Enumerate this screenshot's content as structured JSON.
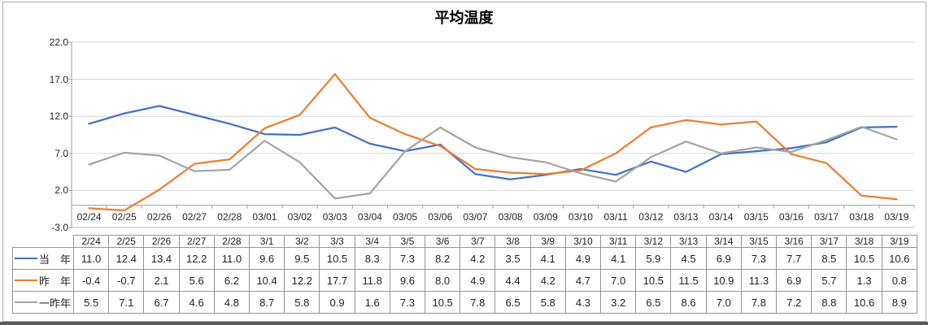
{
  "chart_data": {
    "type": "line",
    "title": "平均温度",
    "x_axis_labels": [
      "02/24",
      "02/25",
      "02/26",
      "02/27",
      "02/28",
      "03/01",
      "03/02",
      "03/03",
      "03/04",
      "03/05",
      "03/06",
      "03/07",
      "03/08",
      "03/09",
      "03/10",
      "03/11",
      "03/12",
      "03/13",
      "03/14",
      "03/15",
      "03/16",
      "03/17",
      "03/18",
      "03/19"
    ],
    "y_axis": {
      "min": -3.0,
      "max": 22.0,
      "step": 5.0,
      "tick_labels": [
        "22.0",
        "17.0",
        "12.0",
        "7.0",
        "2.0",
        "-3.0"
      ],
      "tick_values": [
        22,
        17,
        12,
        7,
        2,
        -3
      ],
      "axis_crosses_at": 0
    },
    "grid": true,
    "legend_position": "data-table-left",
    "series": [
      {
        "name": "当　年",
        "color": "#4472C4",
        "values": [
          11.0,
          12.4,
          13.4,
          12.2,
          11.0,
          9.6,
          9.5,
          10.5,
          8.3,
          7.3,
          8.2,
          4.2,
          3.5,
          4.1,
          4.9,
          4.1,
          5.9,
          4.5,
          6.9,
          7.3,
          7.7,
          8.5,
          10.5,
          10.6
        ]
      },
      {
        "name": "昨　年",
        "color": "#ED7D31",
        "values": [
          -0.4,
          -0.7,
          2.1,
          5.6,
          6.2,
          10.4,
          12.2,
          17.7,
          11.8,
          9.6,
          8.0,
          4.9,
          4.4,
          4.2,
          4.7,
          7.0,
          10.5,
          11.5,
          10.9,
          11.3,
          6.9,
          5.7,
          1.3,
          0.8
        ]
      },
      {
        "name": "一昨年",
        "color": "#A5A5A5",
        "values": [
          5.5,
          7.1,
          6.7,
          4.6,
          4.8,
          8.7,
          5.8,
          0.9,
          1.6,
          7.3,
          10.5,
          7.8,
          6.5,
          5.8,
          4.3,
          3.2,
          6.5,
          8.6,
          7.0,
          7.8,
          7.2,
          8.8,
          10.6,
          8.9
        ]
      }
    ]
  },
  "table": {
    "headers": [
      "2/24",
      "2/25",
      "2/26",
      "2/27",
      "2/28",
      "3/1",
      "3/2",
      "3/3",
      "3/4",
      "3/5",
      "3/6",
      "3/7",
      "3/8",
      "3/9",
      "3/10",
      "3/11",
      "3/12",
      "3/13",
      "3/14",
      "3/15",
      "3/16",
      "3/17",
      "3/18",
      "3/19"
    ]
  },
  "style": {
    "grid_color": "#D9D9D9",
    "axis_color": "#9E9E9E",
    "plot_bottom_color": "#BFBFBF"
  }
}
